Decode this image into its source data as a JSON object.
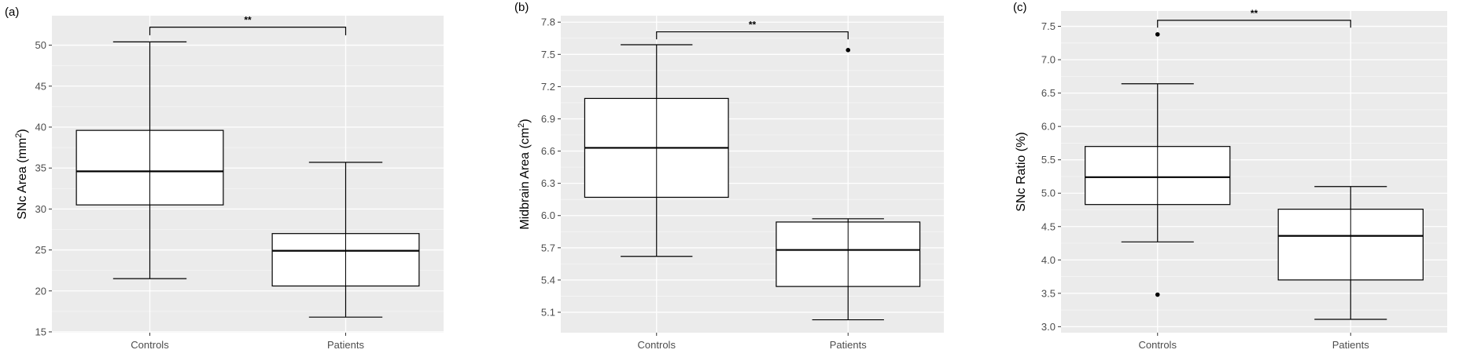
{
  "figure": {
    "colors": {
      "panel_bg": "#ebebeb",
      "grid_major": "#ffffff",
      "grid_minor": "#f5f5f5",
      "box_fill": "#ffffff",
      "stroke": "#000000",
      "tick_text": "#4d4d4d"
    }
  },
  "chart_data": [
    {
      "type": "box",
      "panel_label": "(a)",
      "ylabel": "SNc Area (mm",
      "ylabel_sup": "2",
      "ylabel_tail": ")",
      "categories": [
        "Controls",
        "Patients"
      ],
      "yticks": [
        15,
        20,
        25,
        30,
        35,
        40,
        45,
        50
      ],
      "ylim": [
        14.9,
        53.6
      ],
      "grid": true,
      "boxes": [
        {
          "category": "Controls",
          "whisker_low": 21.5,
          "q1": 30.5,
          "median": 34.6,
          "q3": 39.6,
          "whisker_high": 50.4,
          "outliers": []
        },
        {
          "category": "Patients",
          "whisker_low": 16.8,
          "q1": 20.6,
          "median": 24.9,
          "q3": 27.0,
          "whisker_high": 35.7,
          "outliers": []
        }
      ],
      "significance": {
        "label": "**",
        "y": 52.2,
        "drop": 1.0
      }
    },
    {
      "type": "box",
      "panel_label": "(b)",
      "ylabel": "Midbrain Area (cm",
      "ylabel_sup": "2",
      "ylabel_tail": ")",
      "categories": [
        "Controls",
        "Patients"
      ],
      "yticks": [
        5.1,
        5.4,
        5.7,
        6.0,
        6.3,
        6.6,
        6.9,
        7.2,
        7.5,
        7.8
      ],
      "tick_format": "fixed1",
      "ylim": [
        4.91,
        7.86
      ],
      "grid": true,
      "boxes": [
        {
          "category": "Controls",
          "whisker_low": 5.62,
          "q1": 6.17,
          "median": 6.63,
          "q3": 7.09,
          "whisker_high": 7.59,
          "outliers": []
        },
        {
          "category": "Patients",
          "whisker_low": 5.03,
          "q1": 5.34,
          "median": 5.68,
          "q3": 5.94,
          "whisker_high": 5.97,
          "outliers": [
            7.54
          ]
        }
      ],
      "significance": {
        "label": "**",
        "y": 7.71,
        "drop": 0.07
      }
    },
    {
      "type": "box",
      "panel_label": "(c)",
      "ylabel": "SNc Ratio (%)",
      "ylabel_sup": "",
      "ylabel_tail": "",
      "categories": [
        "Controls",
        "Patients"
      ],
      "yticks": [
        3.0,
        3.5,
        4.0,
        4.5,
        5.0,
        5.5,
        6.0,
        6.5,
        7.0,
        7.5
      ],
      "tick_format": "fixed1",
      "ylim": [
        2.91,
        7.73
      ],
      "grid": true,
      "boxes": [
        {
          "category": "Controls",
          "whisker_low": 4.27,
          "q1": 4.83,
          "median": 5.24,
          "q3": 5.7,
          "whisker_high": 6.64,
          "outliers": [
            3.48,
            7.38
          ]
        },
        {
          "category": "Patients",
          "whisker_low": 3.11,
          "q1": 3.7,
          "median": 4.36,
          "q3": 4.76,
          "whisker_high": 5.1,
          "outliers": []
        }
      ],
      "significance": {
        "label": "**",
        "y": 7.59,
        "drop": 0.11
      }
    }
  ]
}
